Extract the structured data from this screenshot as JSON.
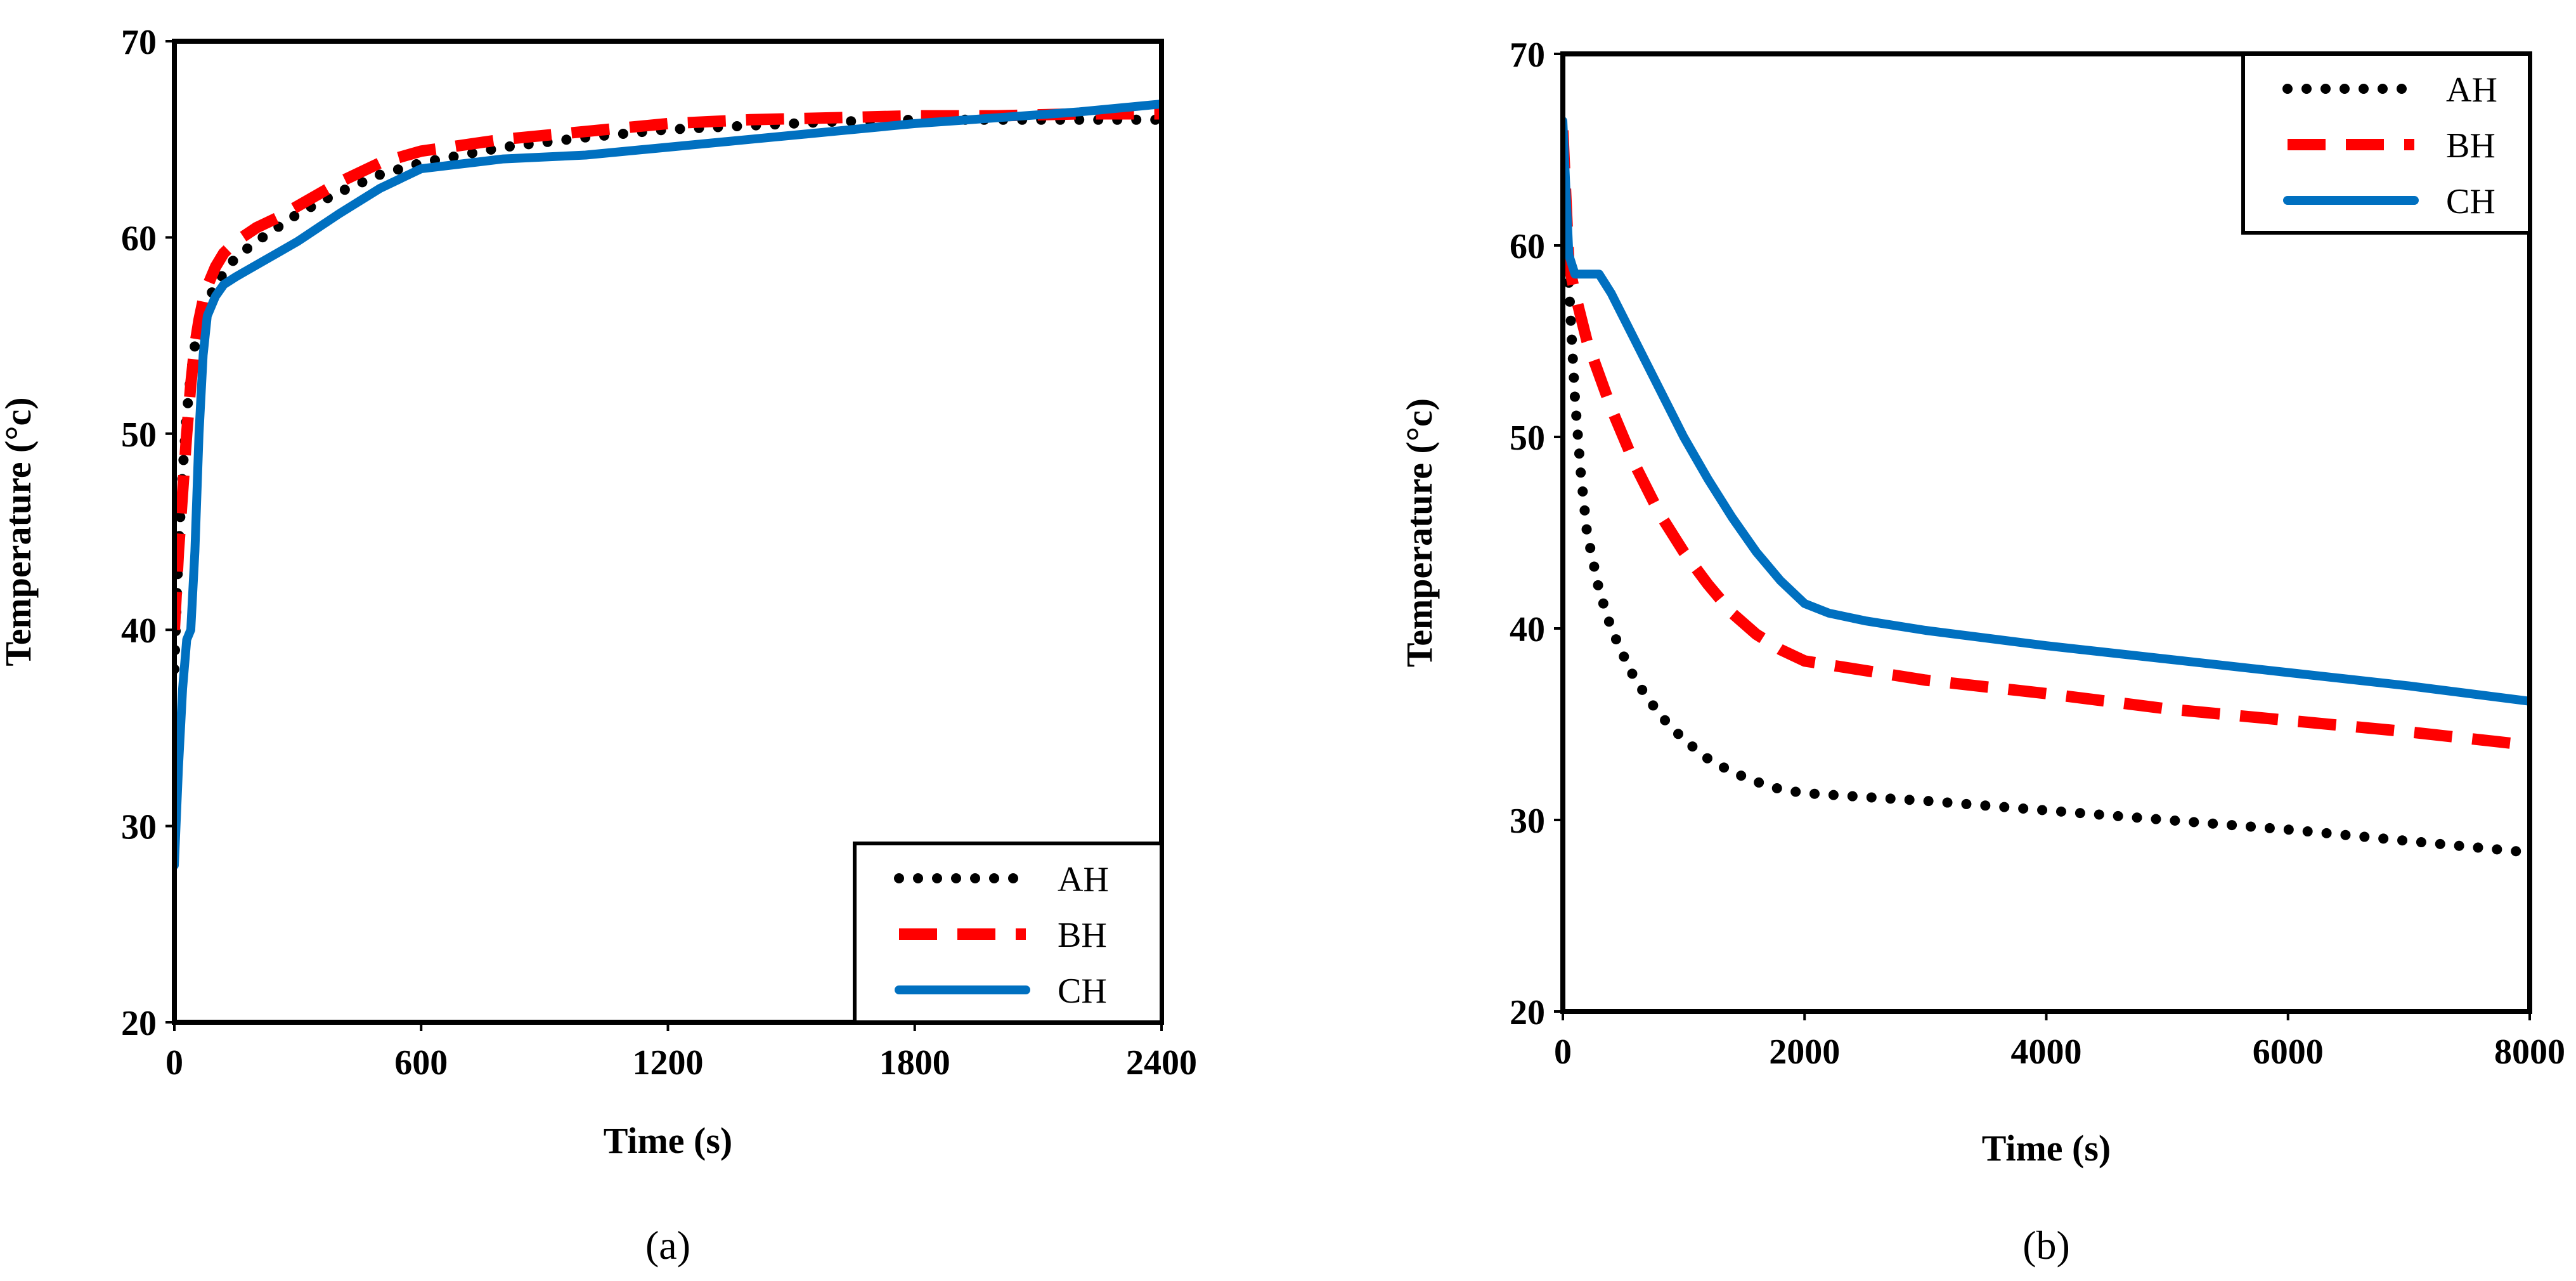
{
  "chart_data": [
    {
      "type": "line",
      "panel_label": "(a)",
      "title": "",
      "xlabel": "Time (s)",
      "ylabel": "Temperature (°c)",
      "xlim": [
        0,
        2400
      ],
      "ylim": [
        20,
        70
      ],
      "xticks": [
        "0",
        "600",
        "1200",
        "1800",
        "2400"
      ],
      "yticks": [
        "20",
        "30",
        "40",
        "50",
        "60",
        "70"
      ],
      "grid": false,
      "legend_position": "bottom-right",
      "series": [
        {
          "name": "AH",
          "style": "dotted",
          "color": "#000000",
          "x": [
            0,
            10,
            20,
            30,
            40,
            50,
            60,
            70,
            80,
            100,
            120,
            150,
            200,
            250,
            300,
            400,
            500,
            600,
            800,
            1000,
            1200,
            1400,
            1600,
            1800,
            2000,
            2200,
            2400
          ],
          "y": [
            38,
            44,
            48,
            51,
            53,
            54.5,
            55.5,
            56.2,
            56.8,
            57.5,
            58.2,
            59,
            59.8,
            60.5,
            61.2,
            62.3,
            63.2,
            63.8,
            64.6,
            65.1,
            65.5,
            65.7,
            65.9,
            66,
            66,
            66,
            66
          ]
        },
        {
          "name": "BH",
          "style": "dashed",
          "color": "#ff0000",
          "x": [
            0,
            10,
            20,
            30,
            40,
            50,
            60,
            70,
            80,
            100,
            120,
            150,
            200,
            250,
            300,
            400,
            500,
            600,
            800,
            1000,
            1200,
            1400,
            1600,
            1800,
            2000,
            2200,
            2400
          ],
          "y": [
            40,
            44,
            47,
            50,
            52.5,
            54.5,
            55.8,
            56.8,
            57.5,
            58.5,
            59.2,
            59.8,
            60.5,
            61,
            61.6,
            62.8,
            63.8,
            64.4,
            65,
            65.4,
            65.8,
            66,
            66.1,
            66.2,
            66.2,
            66.3,
            66.3
          ]
        },
        {
          "name": "CH",
          "style": "solid",
          "color": "#0070c0",
          "x": [
            0,
            10,
            20,
            30,
            40,
            50,
            60,
            70,
            80,
            100,
            120,
            150,
            200,
            250,
            300,
            400,
            500,
            600,
            800,
            1000,
            1200,
            1400,
            1600,
            1800,
            2000,
            2200,
            2400
          ],
          "y": [
            28,
            33,
            37,
            39.5,
            40,
            44,
            50,
            54,
            56,
            57,
            57.6,
            58,
            58.6,
            59.2,
            59.8,
            61.2,
            62.5,
            63.5,
            64,
            64.2,
            64.6,
            65,
            65.4,
            65.8,
            66.1,
            66.4,
            66.8
          ]
        }
      ]
    },
    {
      "type": "line",
      "panel_label": "(b)",
      "title": "",
      "xlabel": "Time (s)",
      "ylabel": "Temperature (°c)",
      "xlim": [
        0,
        8000
      ],
      "ylim": [
        20,
        70
      ],
      "xticks": [
        "0",
        "2000",
        "4000",
        "6000",
        "8000"
      ],
      "yticks": [
        "20",
        "30",
        "40",
        "50",
        "60",
        "70"
      ],
      "grid": false,
      "legend_position": "top-right",
      "series": [
        {
          "name": "AH",
          "style": "dotted",
          "color": "#000000",
          "x": [
            0,
            50,
            100,
            150,
            200,
            300,
            400,
            500,
            600,
            800,
            1000,
            1200,
            1400,
            1600,
            1800,
            2000,
            2500,
            3000,
            4000,
            5000,
            6000,
            7000,
            8000
          ],
          "y": [
            65,
            58,
            52,
            48,
            45,
            42,
            40,
            38.6,
            37.3,
            35.5,
            34.2,
            33.2,
            32.5,
            32,
            31.6,
            31.4,
            31.2,
            31,
            30.5,
            30,
            29.5,
            28.9,
            28.3
          ]
        },
        {
          "name": "BH",
          "style": "dashed",
          "color": "#ff0000",
          "x": [
            0,
            50,
            100,
            200,
            400,
            600,
            800,
            1000,
            1200,
            1400,
            1600,
            1800,
            2000,
            2500,
            3000,
            4000,
            5000,
            6000,
            7000,
            8000
          ],
          "y": [
            66,
            59,
            57.5,
            55,
            51.5,
            48.5,
            46,
            44,
            42.3,
            40.8,
            39.7,
            38.9,
            38.3,
            37.8,
            37.3,
            36.6,
            35.8,
            35.2,
            34.6,
            33.9
          ]
        },
        {
          "name": "CH",
          "style": "solid",
          "color": "#0070c0",
          "x": [
            0,
            50,
            100,
            200,
            300,
            400,
            600,
            800,
            1000,
            1200,
            1400,
            1600,
            1800,
            2000,
            2200,
            2500,
            3000,
            4000,
            5000,
            6000,
            7000,
            8000
          ],
          "y": [
            66.5,
            59.5,
            58.5,
            58.5,
            58.5,
            57.5,
            55,
            52.5,
            50,
            47.8,
            45.8,
            44,
            42.5,
            41.3,
            40.8,
            40.4,
            39.9,
            39.1,
            38.4,
            37.7,
            37,
            36.2
          ]
        }
      ]
    }
  ]
}
